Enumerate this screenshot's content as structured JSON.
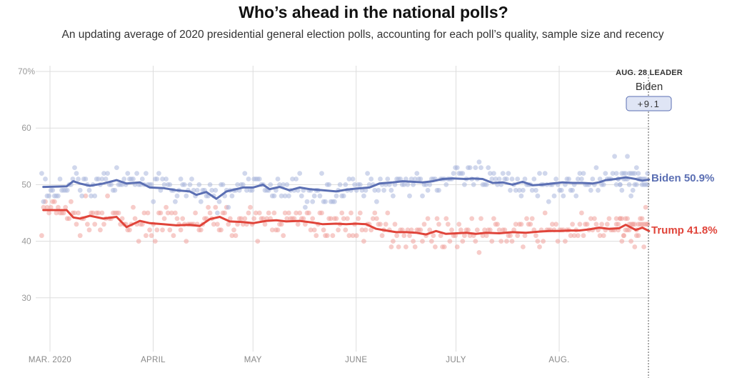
{
  "title": "Who’s ahead in the national polls?",
  "subtitle": "An updating average of 2020 presidential general election polls, accounting for each poll’s quality, sample size and recency",
  "colors": {
    "biden": "#5b6fb3",
    "trump": "#e0443a",
    "biden_dot": "#a9b6dd",
    "trump_dot": "#f1a29c",
    "grid": "#dddddd"
  },
  "leader": {
    "title": "AUG. 28 LEADER",
    "name": "Biden",
    "margin": "+9.1"
  },
  "end_labels": {
    "biden": "Biden 50.9%",
    "trump": "Trump 41.8%"
  },
  "chart_data": {
    "type": "line",
    "x_unit": "date 2020",
    "x_range": [
      "2020-02-27",
      "2020-08-28"
    ],
    "ylim": [
      20,
      70
    ],
    "yticks": [
      {
        "value": 70,
        "label": "70%"
      },
      {
        "value": 60,
        "label": "60"
      },
      {
        "value": 50,
        "label": "50"
      },
      {
        "value": 40,
        "label": "40"
      },
      {
        "value": 30,
        "label": "30"
      }
    ],
    "xticks": [
      {
        "date": "2020-03-01",
        "label": "MAR. 2020"
      },
      {
        "date": "2020-04-01",
        "label": "APRIL"
      },
      {
        "date": "2020-05-01",
        "label": "MAY"
      },
      {
        "date": "2020-06-01",
        "label": "JUNE"
      },
      {
        "date": "2020-07-01",
        "label": "JULY"
      },
      {
        "date": "2020-08-01",
        "label": "AUG."
      }
    ],
    "grid": true,
    "series": [
      {
        "name": "Biden",
        "values": [
          {
            "x": "2020-02-28",
            "y": 49.6
          },
          {
            "x": "2020-03-06",
            "y": 49.7
          },
          {
            "x": "2020-03-08",
            "y": 50.6
          },
          {
            "x": "2020-03-10",
            "y": 50.2
          },
          {
            "x": "2020-03-13",
            "y": 49.8
          },
          {
            "x": "2020-03-17",
            "y": 50.2
          },
          {
            "x": "2020-03-21",
            "y": 50.8
          },
          {
            "x": "2020-03-24",
            "y": 50.2
          },
          {
            "x": "2020-03-28",
            "y": 50.4
          },
          {
            "x": "2020-03-31",
            "y": 49.5
          },
          {
            "x": "2020-04-04",
            "y": 49.4
          },
          {
            "x": "2020-04-08",
            "y": 49.0
          },
          {
            "x": "2020-04-12",
            "y": 48.8
          },
          {
            "x": "2020-04-14",
            "y": 48.2
          },
          {
            "x": "2020-04-17",
            "y": 48.7
          },
          {
            "x": "2020-04-20",
            "y": 47.5
          },
          {
            "x": "2020-04-23",
            "y": 48.8
          },
          {
            "x": "2020-04-28",
            "y": 49.5
          },
          {
            "x": "2020-05-01",
            "y": 49.5
          },
          {
            "x": "2020-05-04",
            "y": 50.0
          },
          {
            "x": "2020-05-06",
            "y": 49.2
          },
          {
            "x": "2020-05-09",
            "y": 49.6
          },
          {
            "x": "2020-05-12",
            "y": 49.0
          },
          {
            "x": "2020-05-15",
            "y": 49.5
          },
          {
            "x": "2020-05-18",
            "y": 49.2
          },
          {
            "x": "2020-05-22",
            "y": 49.0
          },
          {
            "x": "2020-05-26",
            "y": 48.8
          },
          {
            "x": "2020-05-29",
            "y": 49.1
          },
          {
            "x": "2020-06-01",
            "y": 49.3
          },
          {
            "x": "2020-06-05",
            "y": 49.5
          },
          {
            "x": "2020-06-08",
            "y": 50.2
          },
          {
            "x": "2020-06-12",
            "y": 50.4
          },
          {
            "x": "2020-06-15",
            "y": 50.6
          },
          {
            "x": "2020-06-18",
            "y": 50.5
          },
          {
            "x": "2020-06-21",
            "y": 50.4
          },
          {
            "x": "2020-06-24",
            "y": 50.6
          },
          {
            "x": "2020-06-27",
            "y": 51.0
          },
          {
            "x": "2020-06-30",
            "y": 51.1
          },
          {
            "x": "2020-07-04",
            "y": 51.0
          },
          {
            "x": "2020-07-06",
            "y": 51.1
          },
          {
            "x": "2020-07-09",
            "y": 51.0
          },
          {
            "x": "2020-07-12",
            "y": 50.3
          },
          {
            "x": "2020-07-15",
            "y": 50.4
          },
          {
            "x": "2020-07-18",
            "y": 50.0
          },
          {
            "x": "2020-07-21",
            "y": 50.5
          },
          {
            "x": "2020-07-24",
            "y": 49.9
          },
          {
            "x": "2020-07-27",
            "y": 50.0
          },
          {
            "x": "2020-07-30",
            "y": 50.2
          },
          {
            "x": "2020-08-02",
            "y": 50.4
          },
          {
            "x": "2020-08-05",
            "y": 50.3
          },
          {
            "x": "2020-08-08",
            "y": 50.3
          },
          {
            "x": "2020-08-11",
            "y": 50.2
          },
          {
            "x": "2020-08-13",
            "y": 50.4
          },
          {
            "x": "2020-08-15",
            "y": 50.8
          },
          {
            "x": "2020-08-18",
            "y": 51.0
          },
          {
            "x": "2020-08-21",
            "y": 51.3
          },
          {
            "x": "2020-08-24",
            "y": 51.0
          },
          {
            "x": "2020-08-26",
            "y": 50.7
          },
          {
            "x": "2020-08-28",
            "y": 50.9
          }
        ]
      },
      {
        "name": "Trump",
        "values": [
          {
            "x": "2020-02-28",
            "y": 45.5
          },
          {
            "x": "2020-03-06",
            "y": 45.5
          },
          {
            "x": "2020-03-08",
            "y": 44.2
          },
          {
            "x": "2020-03-10",
            "y": 44.0
          },
          {
            "x": "2020-03-13",
            "y": 44.5
          },
          {
            "x": "2020-03-17",
            "y": 44.0
          },
          {
            "x": "2020-03-21",
            "y": 44.3
          },
          {
            "x": "2020-03-24",
            "y": 42.5
          },
          {
            "x": "2020-03-28",
            "y": 43.6
          },
          {
            "x": "2020-03-31",
            "y": 43.2
          },
          {
            "x": "2020-04-04",
            "y": 43.0
          },
          {
            "x": "2020-04-08",
            "y": 42.8
          },
          {
            "x": "2020-04-12",
            "y": 42.9
          },
          {
            "x": "2020-04-15",
            "y": 42.7
          },
          {
            "x": "2020-04-18",
            "y": 43.9
          },
          {
            "x": "2020-04-21",
            "y": 44.3
          },
          {
            "x": "2020-04-24",
            "y": 43.5
          },
          {
            "x": "2020-04-28",
            "y": 43.4
          },
          {
            "x": "2020-05-01",
            "y": 43.2
          },
          {
            "x": "2020-05-05",
            "y": 43.6
          },
          {
            "x": "2020-05-08",
            "y": 43.7
          },
          {
            "x": "2020-05-11",
            "y": 43.5
          },
          {
            "x": "2020-05-15",
            "y": 43.6
          },
          {
            "x": "2020-05-19",
            "y": 43.3
          },
          {
            "x": "2020-05-22",
            "y": 43.0
          },
          {
            "x": "2020-05-26",
            "y": 43.1
          },
          {
            "x": "2020-05-29",
            "y": 43.0
          },
          {
            "x": "2020-06-01",
            "y": 43.1
          },
          {
            "x": "2020-06-04",
            "y": 43.0
          },
          {
            "x": "2020-06-07",
            "y": 42.2
          },
          {
            "x": "2020-06-10",
            "y": 41.9
          },
          {
            "x": "2020-06-13",
            "y": 41.6
          },
          {
            "x": "2020-06-16",
            "y": 41.6
          },
          {
            "x": "2020-06-19",
            "y": 41.5
          },
          {
            "x": "2020-06-22",
            "y": 41.2
          },
          {
            "x": "2020-06-25",
            "y": 41.8
          },
          {
            "x": "2020-06-28",
            "y": 41.3
          },
          {
            "x": "2020-07-01",
            "y": 41.4
          },
          {
            "x": "2020-07-04",
            "y": 41.5
          },
          {
            "x": "2020-07-07",
            "y": 41.3
          },
          {
            "x": "2020-07-10",
            "y": 41.5
          },
          {
            "x": "2020-07-14",
            "y": 41.4
          },
          {
            "x": "2020-07-18",
            "y": 41.6
          },
          {
            "x": "2020-07-22",
            "y": 41.5
          },
          {
            "x": "2020-07-26",
            "y": 41.7
          },
          {
            "x": "2020-07-29",
            "y": 41.8
          },
          {
            "x": "2020-08-01",
            "y": 41.8
          },
          {
            "x": "2020-08-04",
            "y": 41.9
          },
          {
            "x": "2020-08-07",
            "y": 41.9
          },
          {
            "x": "2020-08-10",
            "y": 42.1
          },
          {
            "x": "2020-08-13",
            "y": 42.4
          },
          {
            "x": "2020-08-16",
            "y": 42.2
          },
          {
            "x": "2020-08-19",
            "y": 42.3
          },
          {
            "x": "2020-08-21",
            "y": 42.9
          },
          {
            "x": "2020-08-24",
            "y": 42.0
          },
          {
            "x": "2020-08-26",
            "y": 42.4
          },
          {
            "x": "2020-08-28",
            "y": 41.8
          }
        ]
      }
    ]
  }
}
